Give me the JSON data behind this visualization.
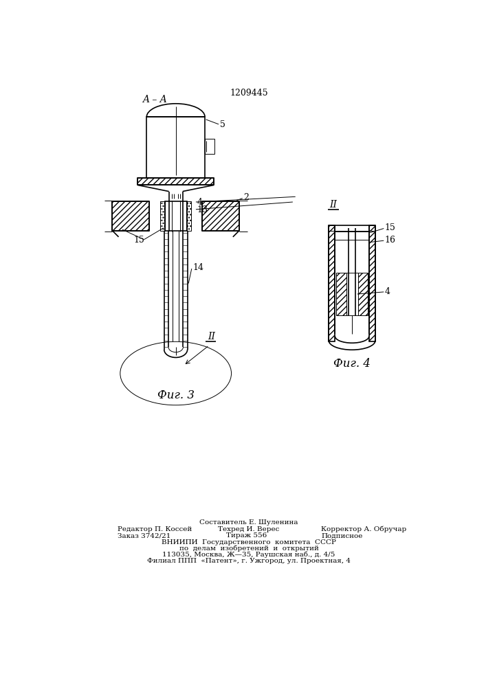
{
  "patent_number": "1209445",
  "fig3_label": "Фиг. 3",
  "fig4_label": "Фиг. 4",
  "bg_color": "#ffffff",
  "line_color": "#000000",
  "footer": [
    [
      "Составитель Е. Шуленина",
      353,
      168,
      "center"
    ],
    [
      "Редактор П. Коссей",
      105,
      155,
      "left"
    ],
    [
      "Техред И. Верес",
      295,
      155,
      "left"
    ],
    [
      "Корректор А. Обручар",
      490,
      155,
      "left"
    ],
    [
      "Заказ 3742/21",
      105,
      143,
      "left"
    ],
    [
      "Тираж 556",
      310,
      143,
      "left"
    ],
    [
      "Подписное",
      490,
      143,
      "left"
    ],
    [
      "ВНИИПИ  Государственного  комитета  СССР",
      353,
      131,
      "center"
    ],
    [
      "по  делам  изобретений  и  открытий",
      353,
      119,
      "center"
    ],
    [
      "113035, Москва, Ж—35, Раушская наб., д. 4/5",
      353,
      107,
      "center"
    ],
    [
      "Филиал ППП  «Патент», г. Ужгород, ул. Проектная, 4",
      353,
      95,
      "center"
    ]
  ]
}
